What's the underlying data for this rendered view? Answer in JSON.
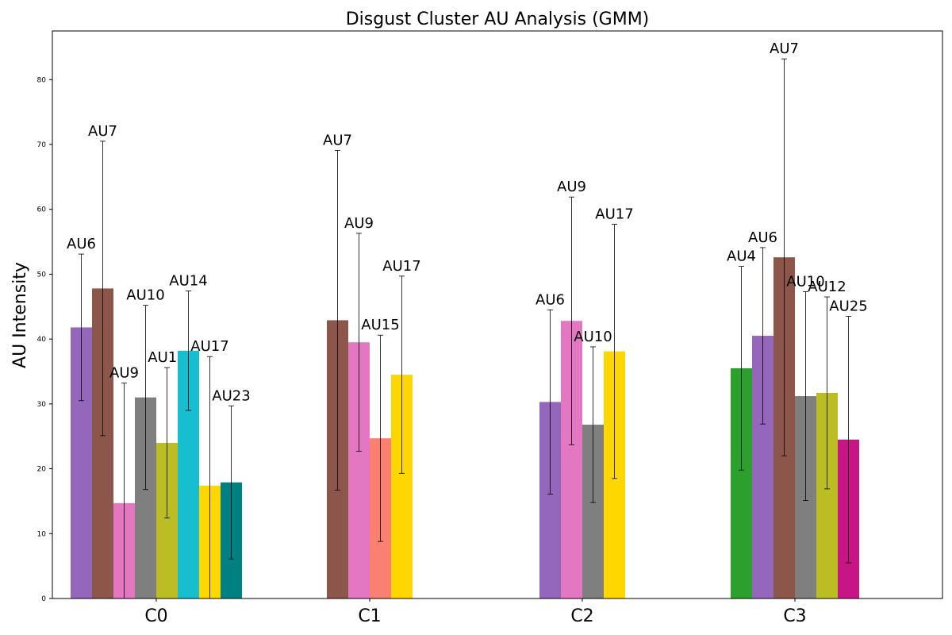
{
  "chart_data": {
    "type": "bar",
    "title": "Disgust Cluster AU Analysis (GMM)",
    "xlabel": "",
    "ylabel": "AU Intensity",
    "ylim": [
      0,
      87.5
    ],
    "yticks": [
      0,
      10,
      20,
      30,
      40,
      50,
      60,
      70,
      80
    ],
    "grid": false,
    "legend": "none",
    "categories": [
      "C0",
      "C1",
      "C2",
      "C3"
    ],
    "groups": [
      {
        "category": "C0",
        "bars": [
          {
            "label": "AU6",
            "value": 41.8,
            "err": 11.3,
            "color": "#9467bd"
          },
          {
            "label": "AU7",
            "value": 47.8,
            "err": 22.7,
            "color": "#8c564b"
          },
          {
            "label": "AU9",
            "value": 14.7,
            "err": 18.5,
            "color": "#e377c2"
          },
          {
            "label": "AU10",
            "value": 31.0,
            "err": 14.2,
            "color": "#7f7f7f"
          },
          {
            "label": "AU12",
            "value": 24.0,
            "err": 11.6,
            "color": "#bcbd22"
          },
          {
            "label": "AU14",
            "value": 38.2,
            "err": 9.2,
            "color": "#17becf"
          },
          {
            "label": "AU17",
            "value": 17.4,
            "err": 19.9,
            "color": "#ffd700"
          },
          {
            "label": "AU23",
            "value": 17.9,
            "err": 11.8,
            "color": "#008080"
          }
        ]
      },
      {
        "category": "C1",
        "bars": [
          {
            "label": "AU7",
            "value": 42.9,
            "err": 26.2,
            "color": "#8c564b"
          },
          {
            "label": "AU9",
            "value": 39.5,
            "err": 16.8,
            "color": "#e377c2"
          },
          {
            "label": "AU15",
            "value": 24.7,
            "err": 15.9,
            "color": "#fa8072"
          },
          {
            "label": "AU17",
            "value": 34.5,
            "err": 15.2,
            "color": "#ffd700"
          }
        ]
      },
      {
        "category": "C2",
        "bars": [
          {
            "label": "AU6",
            "value": 30.3,
            "err": 14.2,
            "color": "#9467bd"
          },
          {
            "label": "AU9",
            "value": 42.8,
            "err": 19.1,
            "color": "#e377c2"
          },
          {
            "label": "AU10",
            "value": 26.8,
            "err": 12.0,
            "color": "#7f7f7f"
          },
          {
            "label": "AU17",
            "value": 38.1,
            "err": 19.6,
            "color": "#ffd700"
          }
        ]
      },
      {
        "category": "C3",
        "bars": [
          {
            "label": "AU4",
            "value": 35.5,
            "err": 15.7,
            "color": "#2ca02c"
          },
          {
            "label": "AU6",
            "value": 40.5,
            "err": 13.6,
            "color": "#9467bd"
          },
          {
            "label": "AU7",
            "value": 52.6,
            "err": 30.6,
            "color": "#8c564b"
          },
          {
            "label": "AU10",
            "value": 31.2,
            "err": 16.1,
            "color": "#7f7f7f"
          },
          {
            "label": "AU12",
            "value": 31.7,
            "err": 14.8,
            "color": "#bcbd22"
          },
          {
            "label": "AU25",
            "value": 24.5,
            "err": 19.0,
            "color": "#c71585"
          }
        ]
      }
    ]
  }
}
